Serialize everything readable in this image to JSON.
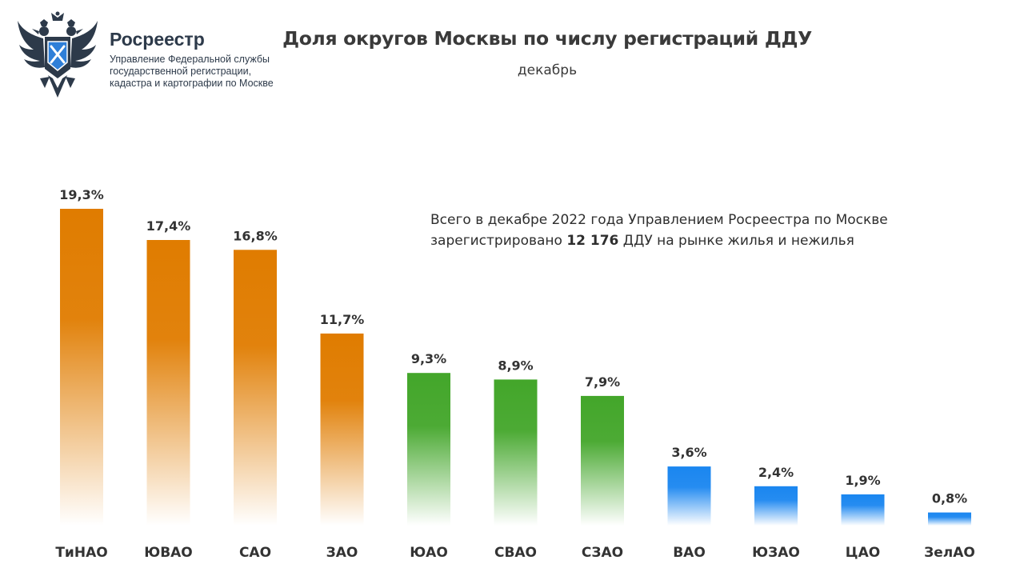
{
  "header": {
    "org_name": "Росреестр",
    "org_subtitle_lines": [
      "Управление Федеральной службы",
      "государственной регистрации,",
      "кадастра и картографии по Москве"
    ]
  },
  "annotation": {
    "line1": "Всего в декабре 2022 года Управлением Росреестра по Москве",
    "line2_before": "зарегистрировано ",
    "line2_bold": "12 176",
    "line2_after": " ДДУ на рынке жилья и нежилья"
  },
  "colors": {
    "orange": "#e07c00",
    "green": "#43a62a",
    "blue": "#1a86f0",
    "emblem": "#2d3a4a",
    "emblem_shield": "#2f7fd8"
  },
  "chart_data": {
    "type": "bar",
    "title": "Доля округов Москвы по числу регистраций ДДУ",
    "subtitle": "декабрь",
    "unit": "%",
    "categories": [
      "ТиНАО",
      "ЮВАО",
      "САО",
      "ЗАО",
      "ЮАО",
      "СВАО",
      "СЗАО",
      "ВАО",
      "ЮЗАО",
      "ЦАО",
      "ЗелАО"
    ],
    "values": [
      19.3,
      17.4,
      16.8,
      11.7,
      9.3,
      8.9,
      7.9,
      3.6,
      2.4,
      1.9,
      0.8
    ],
    "value_labels": [
      "19,3%",
      "17,4%",
      "16,8%",
      "11,7%",
      "9,3%",
      "8,9%",
      "7,9%",
      "3,6%",
      "2,4%",
      "1,9%",
      "0,8%"
    ],
    "bar_colors": [
      "orange",
      "orange",
      "orange",
      "orange",
      "green",
      "green",
      "green",
      "blue",
      "blue",
      "blue",
      "blue"
    ],
    "ylim": [
      0,
      19.3
    ],
    "grid": false,
    "legend": "none"
  }
}
